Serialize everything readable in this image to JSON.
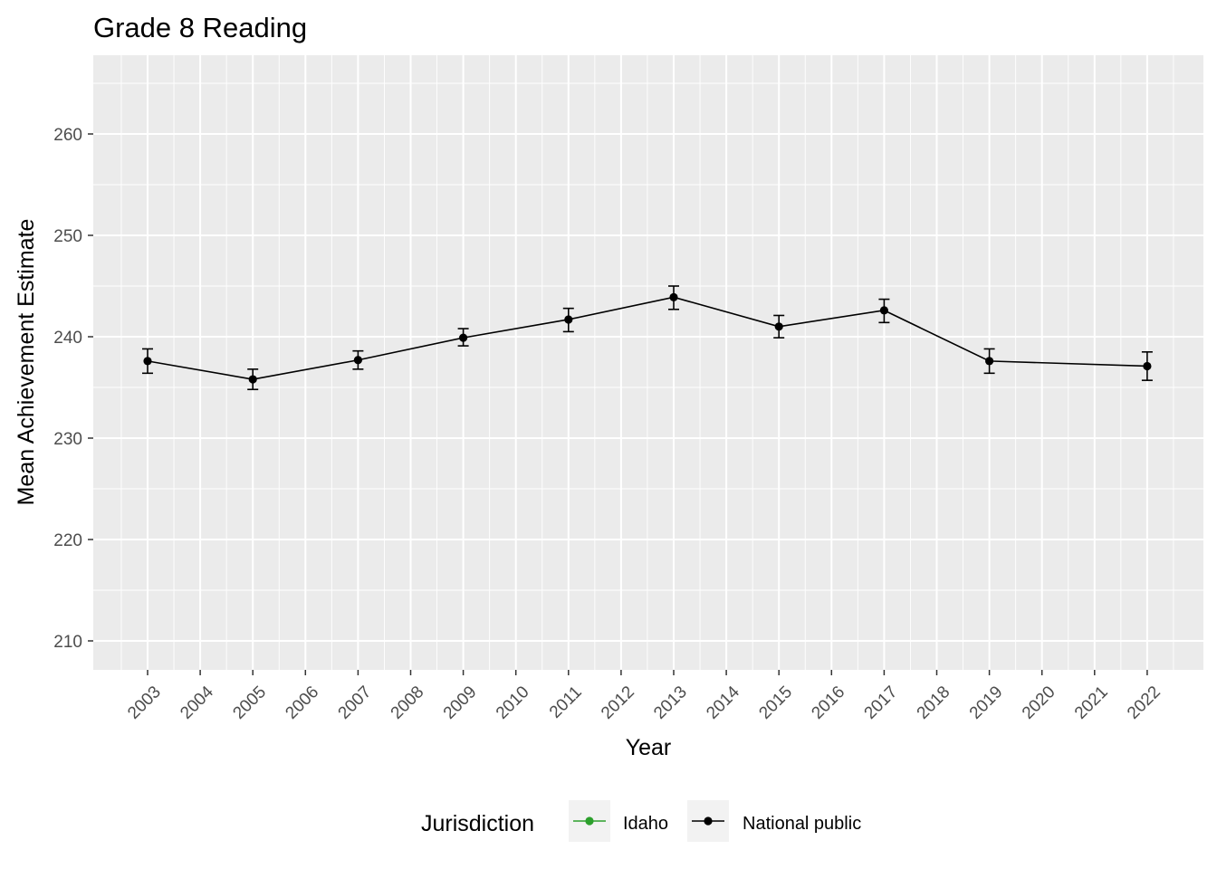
{
  "chart_data": {
    "type": "line",
    "title": "Grade 8 Reading",
    "xlabel": "Year",
    "ylabel": "Mean Achievement Estimate",
    "x_categories": [
      "2003",
      "2004",
      "2005",
      "2006",
      "2007",
      "2008",
      "2009",
      "2010",
      "2011",
      "2012",
      "2013",
      "2014",
      "2015",
      "2016",
      "2017",
      "2018",
      "2019",
      "2020",
      "2021",
      "2022"
    ],
    "ylim": [
      207,
      267
    ],
    "y_ticks": [
      210,
      220,
      230,
      240,
      250,
      260
    ],
    "grid": true,
    "error_bars": true,
    "series": [
      {
        "name": "Idaho",
        "color": "#2ca02c",
        "points": []
      },
      {
        "name": "National public",
        "color": "#000000",
        "points": [
          {
            "x": "2003",
            "y": 237.6,
            "lo": 236.4,
            "hi": 238.8
          },
          {
            "x": "2005",
            "y": 235.8,
            "lo": 234.8,
            "hi": 236.8
          },
          {
            "x": "2007",
            "y": 237.7,
            "lo": 236.8,
            "hi": 238.6
          },
          {
            "x": "2009",
            "y": 239.9,
            "lo": 239.1,
            "hi": 240.8
          },
          {
            "x": "2011",
            "y": 241.7,
            "lo": 240.5,
            "hi": 242.8
          },
          {
            "x": "2013",
            "y": 243.9,
            "lo": 242.7,
            "hi": 245.0
          },
          {
            "x": "2015",
            "y": 241.0,
            "lo": 239.9,
            "hi": 242.1
          },
          {
            "x": "2017",
            "y": 242.6,
            "lo": 241.4,
            "hi": 243.7
          },
          {
            "x": "2019",
            "y": 237.6,
            "lo": 236.4,
            "hi": 238.8
          },
          {
            "x": "2022",
            "y": 237.1,
            "lo": 235.7,
            "hi": 238.5
          }
        ]
      }
    ],
    "legend": {
      "title": "Jurisdiction",
      "placement": "bottom"
    }
  }
}
